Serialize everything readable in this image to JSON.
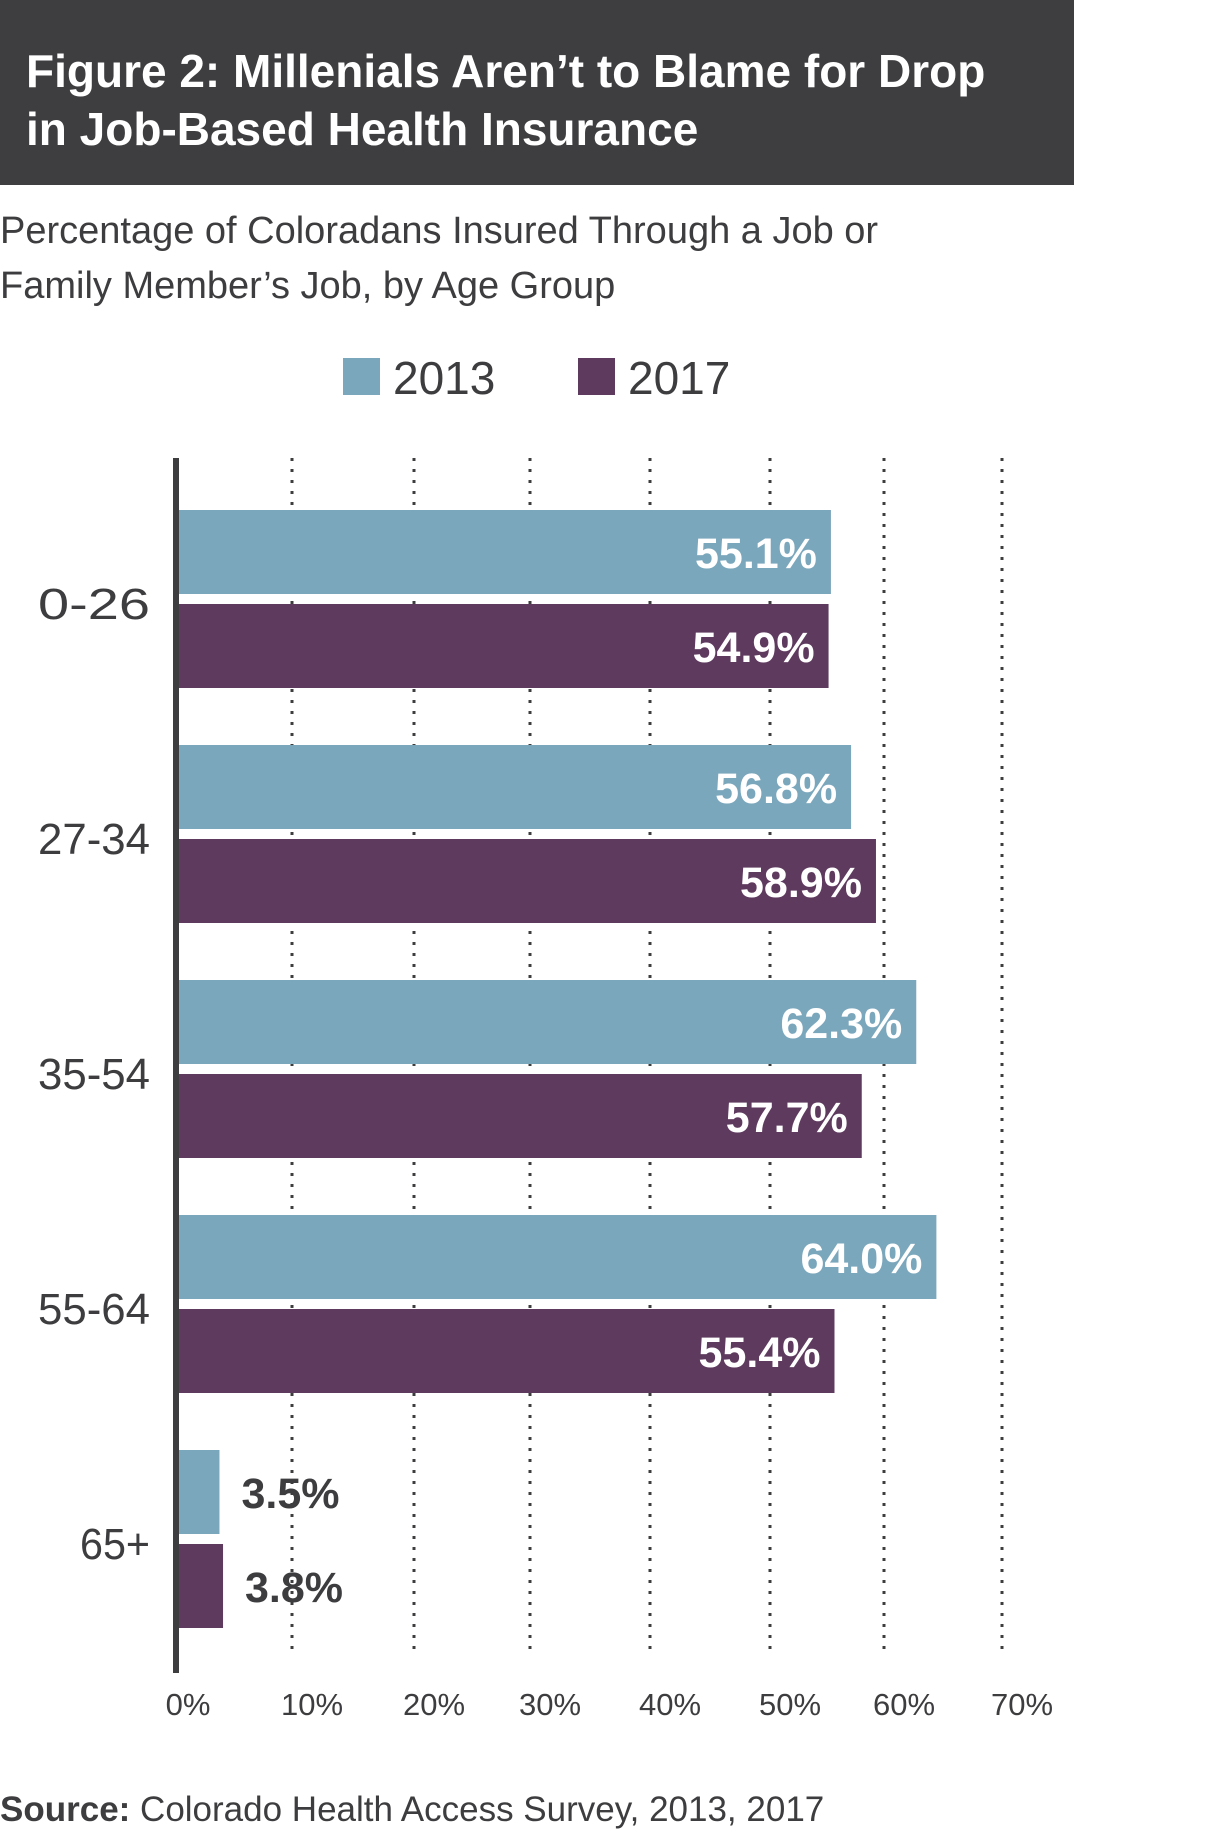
{
  "header": {
    "title_line1": "Figure 2: Millenials Aren’t to Blame for Drop",
    "title_line2": "in Job-Based Health Insurance"
  },
  "subtitle": {
    "line1": "Percentage of Coloradans Insured Through a Job or",
    "line2": "Family Member’s Job, by Age Group"
  },
  "colors": {
    "s2013": "#7ba7bc",
    "s2017": "#5e3a5e",
    "header_bg": "#3e3e40",
    "text": "#3d3d3f"
  },
  "chart_data": {
    "type": "bar",
    "orientation": "horizontal",
    "title": "Figure 2: Millenials Aren’t to Blame for Drop in Job-Based Health Insurance",
    "subtitle": "Percentage of Coloradans Insured Through a Job or Family Member’s Job, by Age Group",
    "categories": [
      "0-26",
      "27-34",
      "35-54",
      "55-64",
      "65+"
    ],
    "series": [
      {
        "name": "2013",
        "values": [
          55.1,
          56.8,
          62.3,
          64.0,
          3.5
        ],
        "labels": [
          "55.1%",
          "56.8%",
          "62.3%",
          "64.0%",
          "3.5%"
        ]
      },
      {
        "name": "2017",
        "values": [
          54.9,
          58.9,
          57.7,
          55.4,
          3.8
        ],
        "labels": [
          "54.9%",
          "58.9%",
          "57.7%",
          "55.4%",
          "3.8%"
        ]
      }
    ],
    "xticks": [
      "0%",
      "10%",
      "20%",
      "30%",
      "40%",
      "50%",
      "60%",
      "70%"
    ],
    "xlim": [
      0,
      70
    ],
    "grid": "vertical-dotted",
    "legend": "top-center",
    "xlabel": "",
    "ylabel": ""
  },
  "source": {
    "label": "Source:",
    "text": " Colorado Health Access Survey, 2013, 2017"
  }
}
